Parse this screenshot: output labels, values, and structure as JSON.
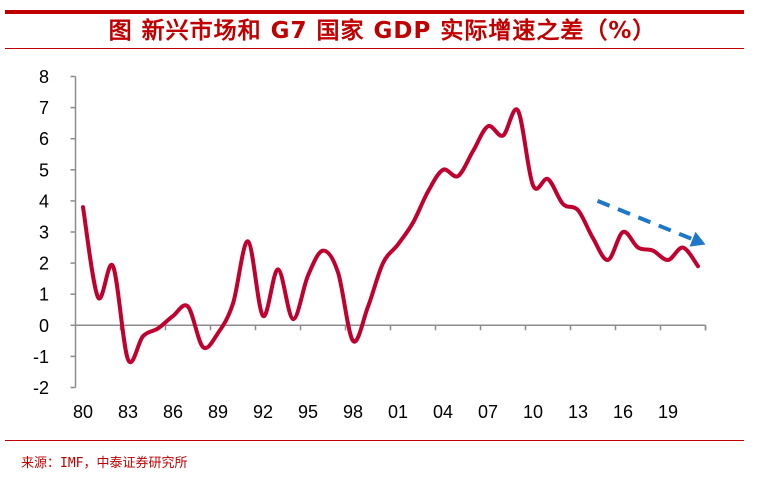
{
  "header": {
    "title": "图  新兴市场和 G7 国家 GDP 实际增速之差（%）"
  },
  "footer": {
    "source": "来源：IMF，中泰证券研究所"
  },
  "colors": {
    "accent": "#c00000",
    "series_line": "#c0002f",
    "trend_arrow": "#1f77c8",
    "axis": "#8c8c8c"
  },
  "chart_data": {
    "type": "line",
    "title": "新兴市场和 G7 国家 GDP 实际增速之差（%）",
    "xlabel": "",
    "ylabel": "",
    "ylim": [
      -2,
      8
    ],
    "yticks": [
      8,
      7,
      6,
      5,
      4,
      3,
      2,
      1,
      0,
      -1,
      -2
    ],
    "x": [
      1980,
      1981,
      1982,
      1983,
      1984,
      1985,
      1986,
      1987,
      1988,
      1989,
      1990,
      1991,
      1992,
      1993,
      1994,
      1995,
      1996,
      1997,
      1998,
      1999,
      2000,
      2001,
      2002,
      2003,
      2004,
      2005,
      2006,
      2007,
      2008,
      2009,
      2010,
      2011,
      2012,
      2013,
      2014,
      2015,
      2016,
      2017,
      2018,
      2019,
      2020,
      2021
    ],
    "xtick_labels": [
      "80",
      "83",
      "86",
      "89",
      "92",
      "95",
      "98",
      "01",
      "04",
      "07",
      "10",
      "13",
      "16",
      "19"
    ],
    "xtick_years": [
      1980,
      1983,
      1986,
      1989,
      1992,
      1995,
      1998,
      2001,
      2004,
      2007,
      2010,
      2013,
      2016,
      2019
    ],
    "series": [
      {
        "name": "EM minus G7 real GDP growth",
        "values": [
          3.8,
          0.9,
          1.9,
          -1.1,
          -0.35,
          -0.1,
          0.3,
          0.6,
          -0.7,
          -0.25,
          0.7,
          2.7,
          0.3,
          1.8,
          0.2,
          1.6,
          2.4,
          1.7,
          -0.5,
          0.6,
          2.0,
          2.6,
          3.3,
          4.3,
          5.0,
          4.8,
          5.6,
          6.4,
          6.1,
          6.9,
          4.5,
          4.7,
          3.9,
          3.7,
          2.8,
          2.1,
          3.0,
          2.5,
          2.4,
          2.1,
          2.5,
          1.9
        ]
      }
    ],
    "annotations": [
      {
        "type": "dashed-arrow",
        "from": {
          "x": 2014.3,
          "y": 4.0
        },
        "to": {
          "x": 2021.5,
          "y": 2.6
        },
        "meaning": "downward trend"
      }
    ],
    "grid": false,
    "legend": "none"
  }
}
